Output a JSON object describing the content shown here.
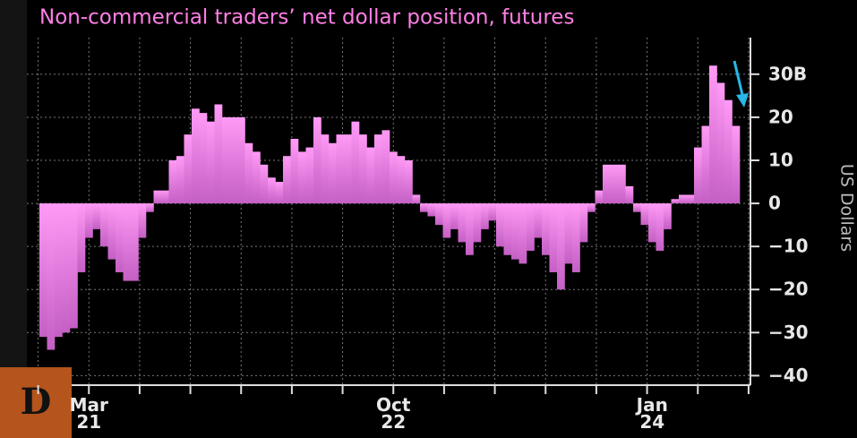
{
  "logo": "D",
  "chart_data": {
    "type": "bar",
    "title": "Non-commercial traders’ net dollar position, futures",
    "y_label": "US Dollars",
    "color": "#ea80e6",
    "grid": true,
    "categories": [
      null,
      null,
      null,
      null,
      null,
      null,
      "Mar 21",
      null,
      null,
      null,
      null,
      null,
      null,
      null,
      null,
      null,
      null,
      null,
      null,
      null,
      null,
      null,
      null,
      null,
      null,
      null,
      null,
      null,
      null,
      null,
      null,
      null,
      null,
      null,
      null,
      null,
      null,
      null,
      null,
      null,
      null,
      null,
      null,
      null,
      null,
      null,
      "Oct 22",
      null,
      null,
      null,
      null,
      null,
      null,
      null,
      null,
      null,
      null,
      null,
      null,
      null,
      null,
      null,
      null,
      null,
      null,
      null,
      null,
      null,
      null,
      null,
      null,
      null,
      null,
      null,
      null,
      null,
      null,
      null,
      null,
      null,
      "Jan 24",
      null,
      null,
      null,
      null,
      null,
      null,
      null,
      null,
      null,
      null,
      null
    ],
    "values": [
      -31,
      -34,
      -31,
      -30,
      -29,
      -16,
      -8,
      -6,
      -10,
      -13,
      -16,
      -18,
      -18,
      -8,
      -2,
      3,
      3,
      10,
      11,
      16,
      22,
      21,
      19,
      23,
      20,
      20,
      20,
      14,
      12,
      9,
      6,
      5,
      11,
      15,
      12,
      13,
      20,
      16,
      14,
      16,
      16,
      19,
      16,
      13,
      16,
      17,
      12,
      11,
      10,
      2,
      -2,
      -3,
      -5,
      -8,
      -6,
      -9,
      -12,
      -9,
      -6,
      -4,
      -10,
      -12,
      -13,
      -14,
      -11,
      -8,
      -12,
      -16,
      -20,
      -14,
      -16,
      -9,
      -2,
      3,
      9,
      9,
      9,
      4,
      -2,
      -5,
      -9,
      -11,
      -6,
      1,
      2,
      2,
      13,
      18,
      32,
      28,
      24,
      18
    ],
    "ylim": [
      -42,
      38.5
    ],
    "yticks": [
      {
        "value": 30,
        "label": "30B"
      },
      20,
      10,
      0,
      {
        "value": -10,
        "label": "−10"
      },
      {
        "value": -20,
        "label": "−20"
      },
      {
        "value": -30,
        "label": "−30"
      },
      {
        "value": -40,
        "label": "−40"
      }
    ]
  }
}
